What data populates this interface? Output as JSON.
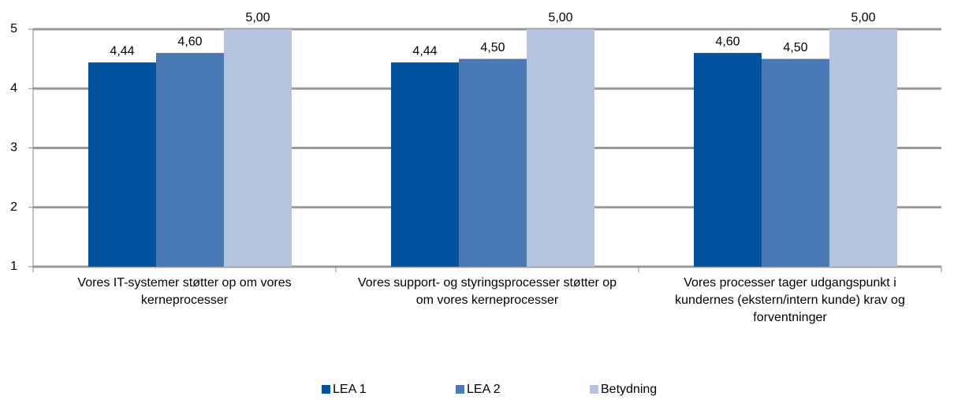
{
  "chart_data": {
    "type": "bar",
    "categories": [
      "Vores IT-systemer støtter op om vores kerneprocesser",
      "Vores support- og styringsprocesser støtter op om vores kerneprocesser",
      "Vores processer tager udgangspunkt i kundernes (ekstern/intern kunde) krav og forventninger"
    ],
    "series": [
      {
        "name": "LEA 1",
        "color": "#00539f",
        "values": [
          4.44,
          4.44,
          4.6
        ],
        "value_labels": [
          "4,44",
          "4,44",
          "4,60"
        ]
      },
      {
        "name": "LEA 2",
        "color": "#4a7ab4",
        "values": [
          4.6,
          4.5,
          4.5
        ],
        "value_labels": [
          "4,60",
          "4,50",
          "4,50"
        ]
      },
      {
        "name": "Betydning",
        "color": "#b5c3df",
        "values": [
          5,
          5,
          5
        ],
        "value_labels": [
          "5,00",
          "5,00",
          "5,00"
        ]
      }
    ],
    "ylim": [
      1,
      5
    ],
    "yticks": [
      1,
      2,
      3,
      4,
      5
    ],
    "grid": true,
    "legend": "bottom"
  }
}
